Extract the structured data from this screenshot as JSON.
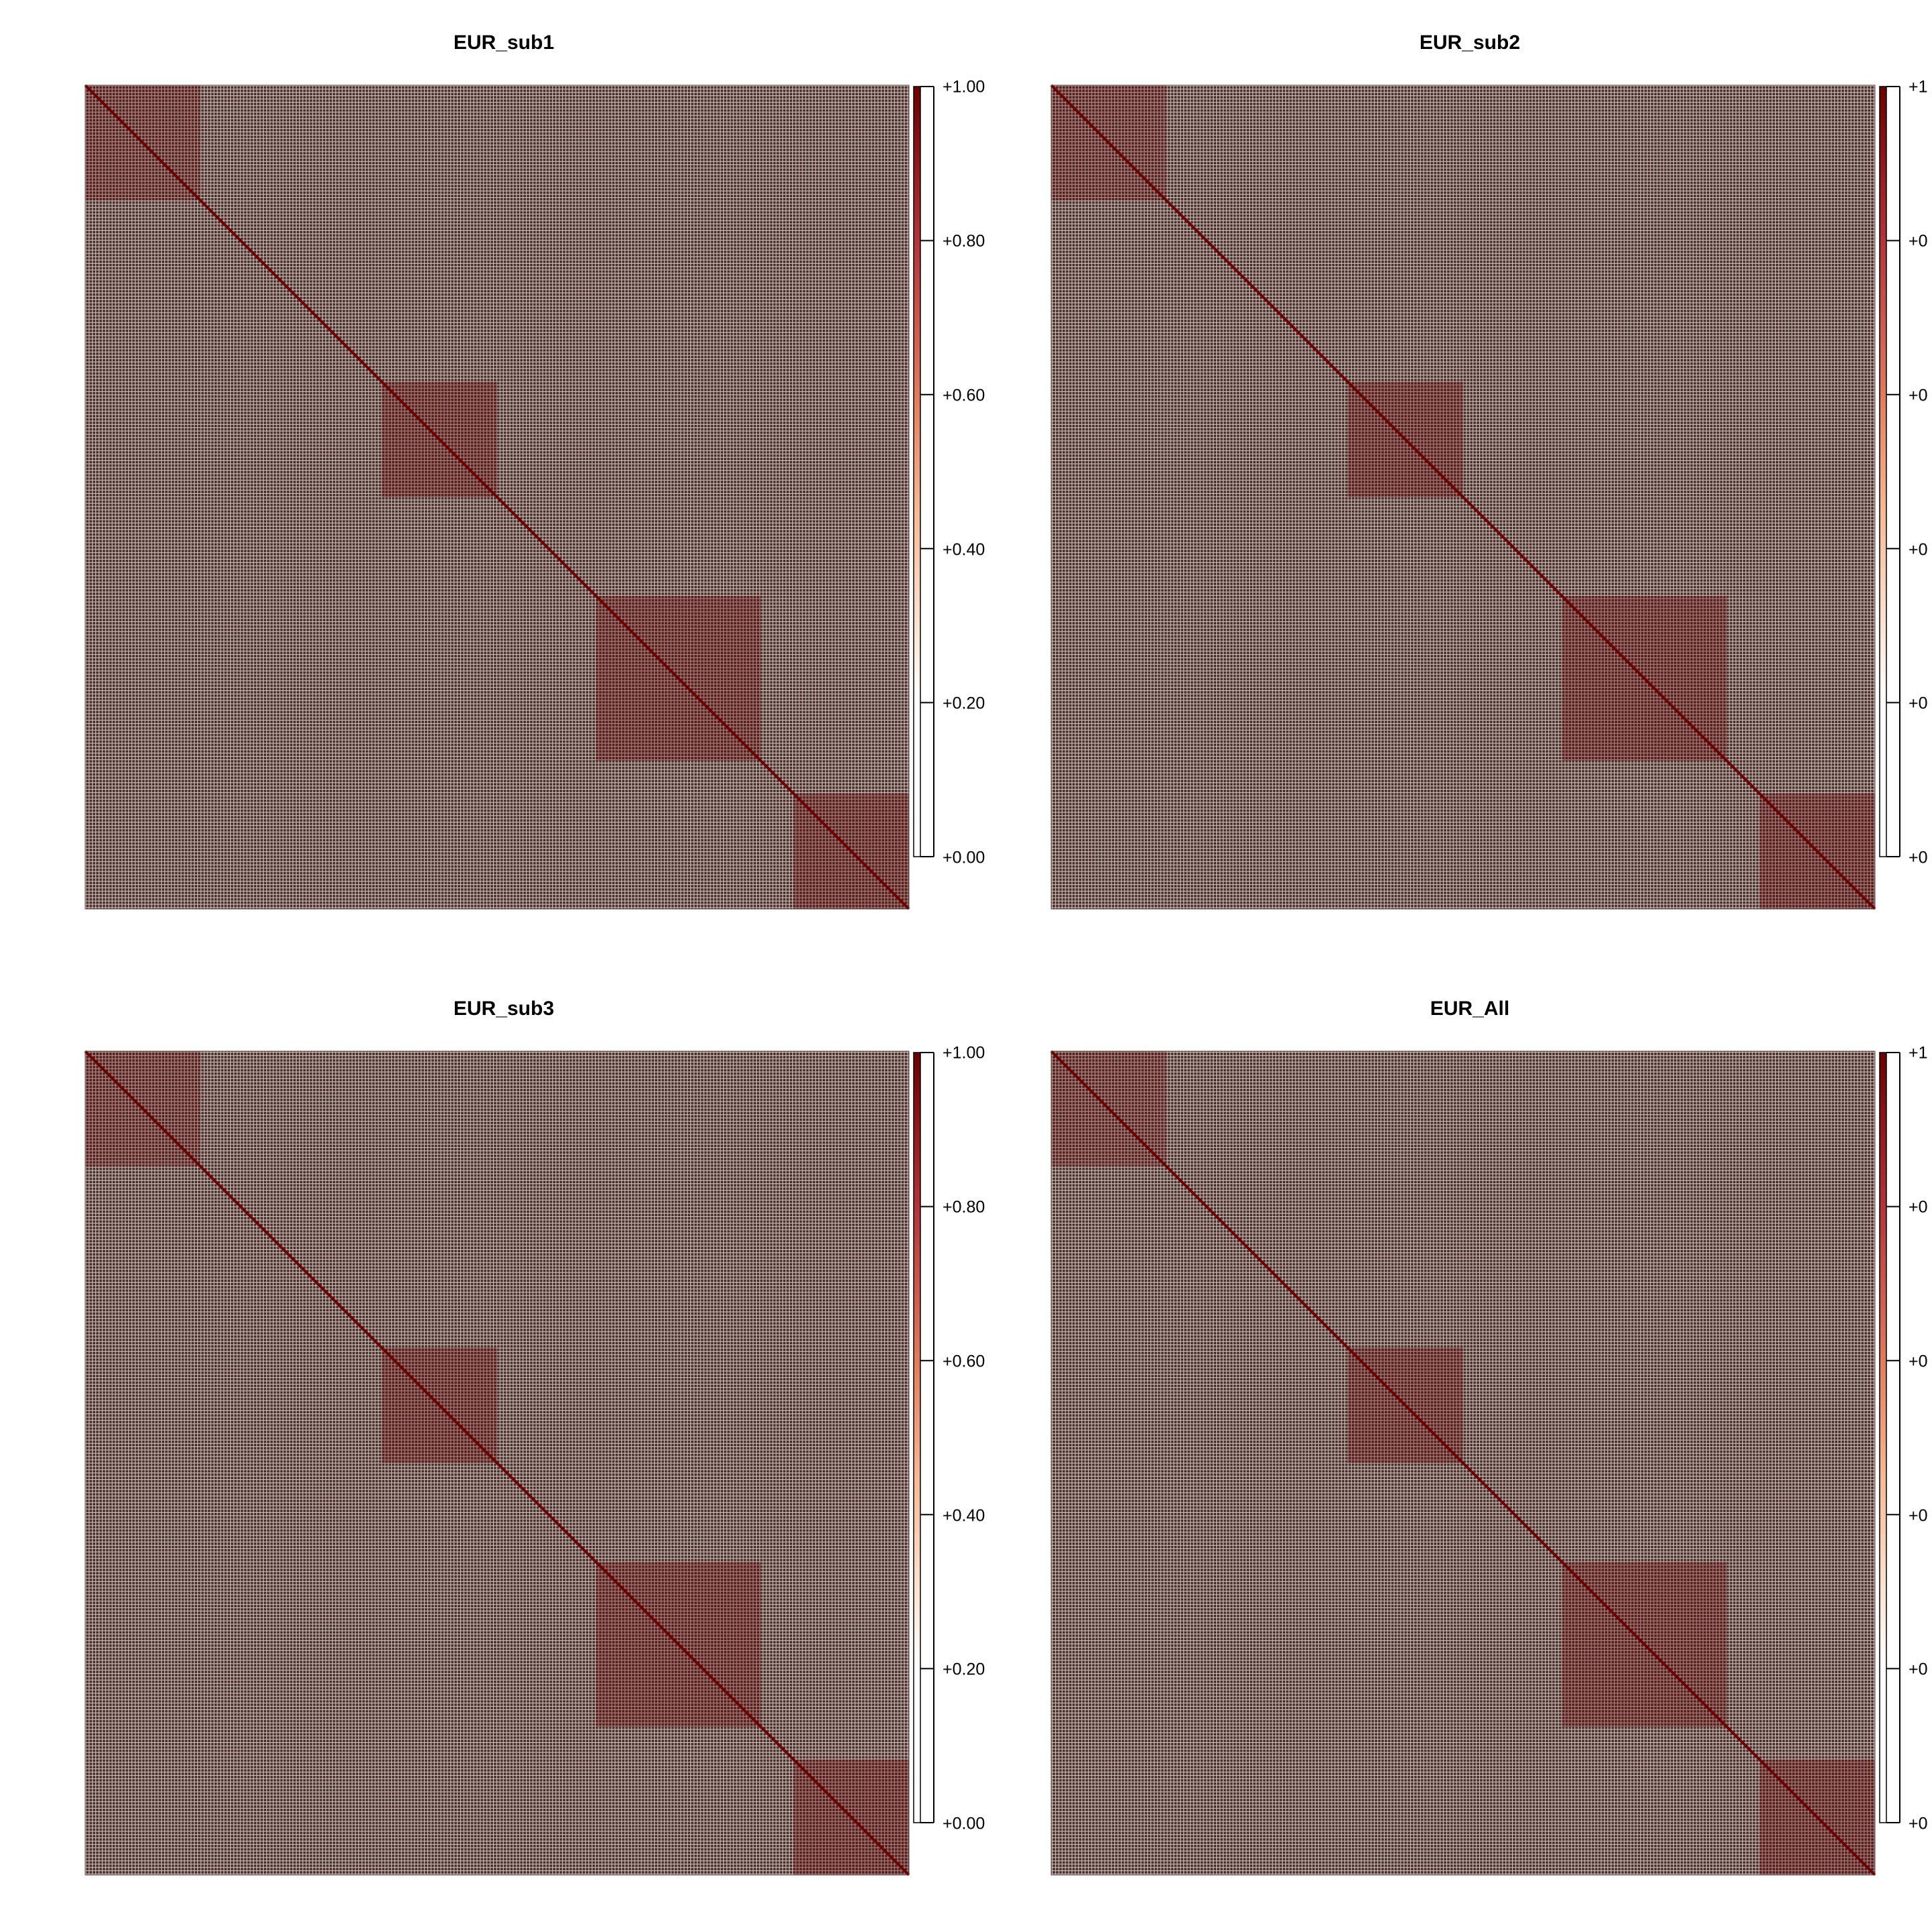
{
  "chart_data": [
    {
      "type": "heatmap",
      "title": "EUR_sub1",
      "xlabel": "",
      "ylabel": "",
      "colorbar": {
        "ticks": [
          "+0.00",
          "+0.20",
          "+0.40",
          "+0.60",
          "+0.80",
          "+1.00"
        ],
        "range": [
          0,
          1
        ]
      },
      "value_range": [
        0,
        1
      ],
      "diagonal": 1.0,
      "blocks": [
        {
          "from": 0.86,
          "to": 1.0,
          "value": 0.95
        },
        {
          "from": 0.62,
          "to": 0.82,
          "value": 0.9
        },
        {
          "from": 0.36,
          "to": 0.5,
          "value": 0.9
        },
        {
          "from": 0.0,
          "to": 0.14,
          "value": 0.75
        }
      ]
    },
    {
      "type": "heatmap",
      "title": "EUR_sub2",
      "xlabel": "",
      "ylabel": "",
      "colorbar": {
        "ticks": [
          "+0",
          "+0",
          "+0",
          "+0",
          "+0",
          "+1"
        ],
        "range": [
          0,
          1
        ]
      },
      "value_range": [
        0,
        1
      ],
      "diagonal": 1.0,
      "blocks": [
        {
          "from": 0.86,
          "to": 1.0,
          "value": 0.95
        },
        {
          "from": 0.62,
          "to": 0.82,
          "value": 0.9
        },
        {
          "from": 0.36,
          "to": 0.5,
          "value": 0.9
        },
        {
          "from": 0.0,
          "to": 0.14,
          "value": 0.75
        }
      ]
    },
    {
      "type": "heatmap",
      "title": "EUR_sub3",
      "xlabel": "",
      "ylabel": "",
      "colorbar": {
        "ticks": [
          "+0.00",
          "+0.20",
          "+0.40",
          "+0.60",
          "+0.80",
          "+1.00"
        ],
        "range": [
          0,
          1
        ]
      },
      "value_range": [
        0,
        1
      ],
      "diagonal": 1.0,
      "blocks": [
        {
          "from": 0.86,
          "to": 1.0,
          "value": 0.95
        },
        {
          "from": 0.62,
          "to": 0.82,
          "value": 0.9
        },
        {
          "from": 0.36,
          "to": 0.5,
          "value": 0.9
        },
        {
          "from": 0.0,
          "to": 0.14,
          "value": 0.75
        }
      ]
    },
    {
      "type": "heatmap",
      "title": "EUR_All",
      "xlabel": "",
      "ylabel": "",
      "colorbar": {
        "ticks": [
          "+0",
          "+0",
          "+0",
          "+0",
          "+0",
          "+1"
        ],
        "range": [
          0,
          1
        ]
      },
      "value_range": [
        0,
        1
      ],
      "diagonal": 1.0,
      "blocks": [
        {
          "from": 0.86,
          "to": 1.0,
          "value": 0.95
        },
        {
          "from": 0.62,
          "to": 0.82,
          "value": 0.9
        },
        {
          "from": 0.36,
          "to": 0.5,
          "value": 0.9
        },
        {
          "from": 0.0,
          "to": 0.14,
          "value": 0.75
        }
      ]
    }
  ],
  "colors": {
    "background": "#ffffff",
    "cell_low": "#ffffff",
    "cell_high": "#6b0000",
    "grid_base": "#6f5d56",
    "scale": [
      "#ffffff",
      "#fde4d3",
      "#f6b894",
      "#e07a5f",
      "#b2343a",
      "#6b0000"
    ]
  }
}
